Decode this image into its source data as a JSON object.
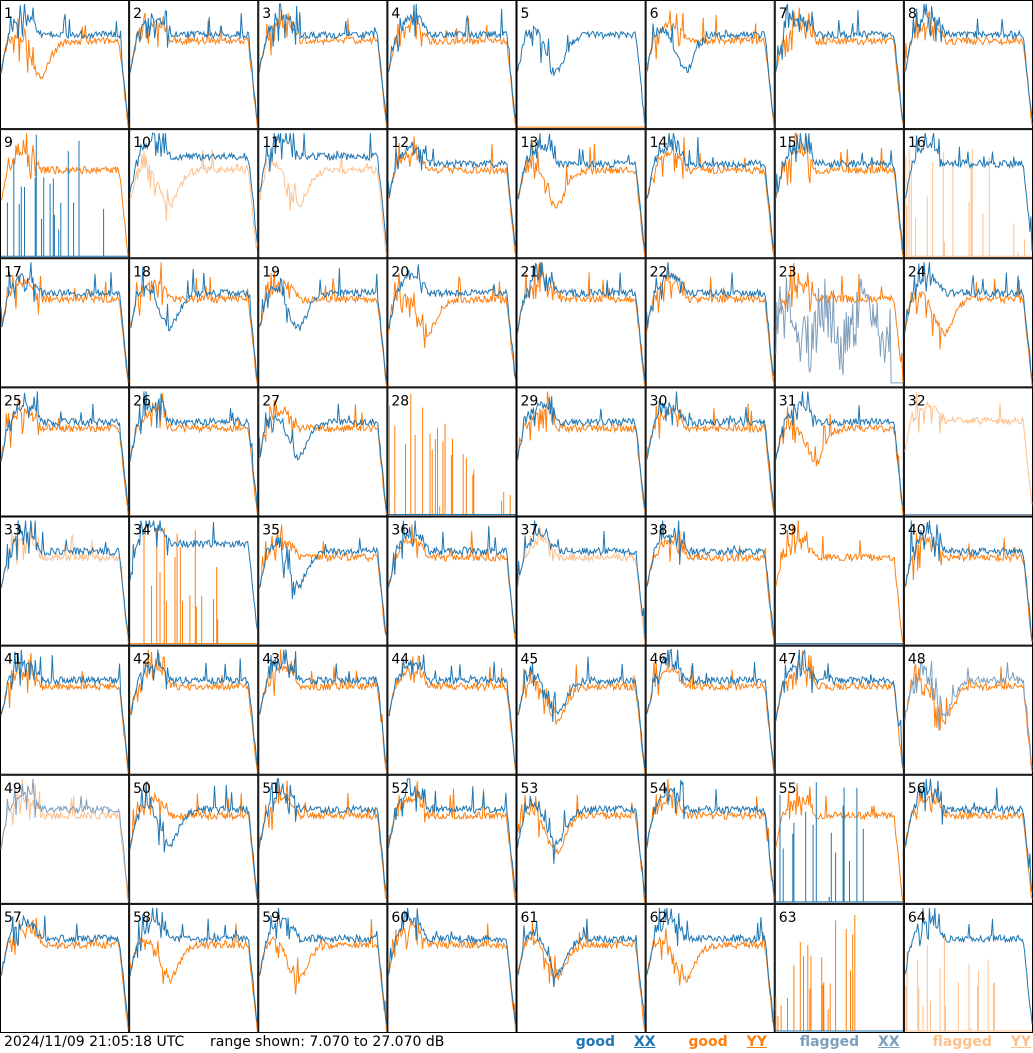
{
  "footer": {
    "timestamp": "2024/11/09 21:05:18 UTC",
    "range_text": "range shown: 7.070 to 27.070 dB"
  },
  "legend": [
    {
      "label": "good",
      "pol": "XX",
      "color": "#1f77b4"
    },
    {
      "label": "good",
      "pol": "YY",
      "color": "#ff7f0e"
    },
    {
      "label": "flagged",
      "pol": "XX",
      "color": "#7f9fbf"
    },
    {
      "label": "flagged",
      "pol": "YY",
      "color": "#ffc08c"
    }
  ],
  "chart_data": {
    "type": "line",
    "layout": "8x8 grid of small-multiple spectra, one per tile",
    "y_unit": "dB",
    "ylim": [
      7.07,
      27.07
    ],
    "grid": false,
    "series_styles": {
      "good_XX": "#1f77b4",
      "good_YY": "#ff7f0e",
      "flagged_XX": "#7f9fbf",
      "flagged_YY": "#ffc08c"
    },
    "tiles": [
      {
        "id": "1",
        "xx": "good",
        "yy": "good",
        "xx_shape": "normal",
        "yy_shape": "dip"
      },
      {
        "id": "2",
        "xx": "good",
        "yy": "good",
        "xx_shape": "normal",
        "yy_shape": "normal"
      },
      {
        "id": "3",
        "xx": "good",
        "yy": "good",
        "xx_shape": "normal",
        "yy_shape": "normal"
      },
      {
        "id": "4",
        "xx": "good",
        "yy": "good",
        "xx_shape": "normal",
        "yy_shape": "normal"
      },
      {
        "id": "5",
        "xx": "good",
        "yy": "good",
        "xx_shape": "dip",
        "yy_shape": "zero"
      },
      {
        "id": "6",
        "xx": "good",
        "yy": "good",
        "xx_shape": "dip",
        "yy_shape": "normal"
      },
      {
        "id": "7",
        "xx": "good",
        "yy": "good",
        "xx_shape": "normal",
        "yy_shape": "normal"
      },
      {
        "id": "8",
        "xx": "good",
        "yy": "good",
        "xx_shape": "normal",
        "yy_shape": "normal"
      },
      {
        "id": "9",
        "xx": "good",
        "yy": "good",
        "xx_shape": "spiky",
        "yy_shape": "normal"
      },
      {
        "id": "10",
        "xx": "good",
        "yy": "flagged",
        "xx_shape": "high",
        "yy_shape": "dip"
      },
      {
        "id": "11",
        "xx": "good",
        "yy": "flagged",
        "xx_shape": "high",
        "yy_shape": "dip"
      },
      {
        "id": "12",
        "xx": "good",
        "yy": "good",
        "xx_shape": "normal",
        "yy_shape": "normal"
      },
      {
        "id": "13",
        "xx": "good",
        "yy": "good",
        "xx_shape": "normal",
        "yy_shape": "dip"
      },
      {
        "id": "14",
        "xx": "good",
        "yy": "good",
        "xx_shape": "normal",
        "yy_shape": "normal"
      },
      {
        "id": "15",
        "xx": "good",
        "yy": "good",
        "xx_shape": "normal",
        "yy_shape": "normal"
      },
      {
        "id": "16",
        "xx": "good",
        "yy": "flagged",
        "xx_shape": "normal",
        "yy_shape": "spiky"
      },
      {
        "id": "17",
        "xx": "good",
        "yy": "good",
        "xx_shape": "normal",
        "yy_shape": "normal"
      },
      {
        "id": "18",
        "xx": "good",
        "yy": "good",
        "xx_shape": "dip",
        "yy_shape": "normal"
      },
      {
        "id": "19",
        "xx": "good",
        "yy": "good",
        "xx_shape": "dip",
        "yy_shape": "normal"
      },
      {
        "id": "20",
        "xx": "good",
        "yy": "good",
        "xx_shape": "normal",
        "yy_shape": "dip"
      },
      {
        "id": "21",
        "xx": "good",
        "yy": "good",
        "xx_shape": "normal",
        "yy_shape": "normal"
      },
      {
        "id": "22",
        "xx": "good",
        "yy": "good",
        "xx_shape": "normal",
        "yy_shape": "normal"
      },
      {
        "id": "23",
        "xx": "flagged",
        "yy": "good",
        "xx_shape": "noisy",
        "yy_shape": "normal"
      },
      {
        "id": "24",
        "xx": "good",
        "yy": "good",
        "xx_shape": "normal",
        "yy_shape": "dip"
      },
      {
        "id": "25",
        "xx": "good",
        "yy": "good",
        "xx_shape": "normal",
        "yy_shape": "normal"
      },
      {
        "id": "26",
        "xx": "good",
        "yy": "good",
        "xx_shape": "normal",
        "yy_shape": "normal"
      },
      {
        "id": "27",
        "xx": "good",
        "yy": "good",
        "xx_shape": "dip",
        "yy_shape": "normal"
      },
      {
        "id": "28",
        "xx": "good",
        "yy": "good",
        "xx_shape": "zero",
        "yy_shape": "spiky"
      },
      {
        "id": "29",
        "xx": "good",
        "yy": "good",
        "xx_shape": "normal",
        "yy_shape": "normal"
      },
      {
        "id": "30",
        "xx": "good",
        "yy": "good",
        "xx_shape": "normal",
        "yy_shape": "normal"
      },
      {
        "id": "31",
        "xx": "good",
        "yy": "good",
        "xx_shape": "normal",
        "yy_shape": "dip"
      },
      {
        "id": "32",
        "xx": "flagged",
        "yy": "flagged",
        "xx_shape": "zero",
        "yy_shape": "high"
      },
      {
        "id": "33",
        "xx": "good",
        "yy": "flagged",
        "xx_shape": "normal",
        "yy_shape": "normal"
      },
      {
        "id": "34",
        "xx": "good",
        "yy": "good",
        "xx_shape": "high",
        "yy_shape": "spiky"
      },
      {
        "id": "35",
        "xx": "good",
        "yy": "good",
        "xx_shape": "dip",
        "yy_shape": "normal"
      },
      {
        "id": "36",
        "xx": "good",
        "yy": "good",
        "xx_shape": "normal",
        "yy_shape": "normal"
      },
      {
        "id": "37",
        "xx": "good",
        "yy": "flagged",
        "xx_shape": "normal",
        "yy_shape": "normal"
      },
      {
        "id": "38",
        "xx": "good",
        "yy": "good",
        "xx_shape": "normal",
        "yy_shape": "normal"
      },
      {
        "id": "39",
        "xx": "good",
        "yy": "good",
        "xx_shape": "zero",
        "yy_shape": "normal"
      },
      {
        "id": "40",
        "xx": "good",
        "yy": "good",
        "xx_shape": "normal",
        "yy_shape": "normal"
      },
      {
        "id": "41",
        "xx": "good",
        "yy": "good",
        "xx_shape": "normal",
        "yy_shape": "normal"
      },
      {
        "id": "42",
        "xx": "good",
        "yy": "good",
        "xx_shape": "normal",
        "yy_shape": "normal"
      },
      {
        "id": "43",
        "xx": "good",
        "yy": "good",
        "xx_shape": "normal",
        "yy_shape": "normal"
      },
      {
        "id": "44",
        "xx": "good",
        "yy": "good",
        "xx_shape": "normal",
        "yy_shape": "normal"
      },
      {
        "id": "45",
        "xx": "good",
        "yy": "good",
        "xx_shape": "dip",
        "yy_shape": "dip"
      },
      {
        "id": "46",
        "xx": "good",
        "yy": "good",
        "xx_shape": "normal",
        "yy_shape": "normal"
      },
      {
        "id": "47",
        "xx": "good",
        "yy": "good",
        "xx_shape": "normal",
        "yy_shape": "normal"
      },
      {
        "id": "48",
        "xx": "flagged",
        "yy": "good",
        "xx_shape": "dip",
        "yy_shape": "dip"
      },
      {
        "id": "49",
        "xx": "flagged",
        "yy": "flagged",
        "xx_shape": "normal",
        "yy_shape": "normal"
      },
      {
        "id": "50",
        "xx": "good",
        "yy": "good",
        "xx_shape": "dip",
        "yy_shape": "normal"
      },
      {
        "id": "51",
        "xx": "good",
        "yy": "good",
        "xx_shape": "normal",
        "yy_shape": "normal"
      },
      {
        "id": "52",
        "xx": "good",
        "yy": "good",
        "xx_shape": "normal",
        "yy_shape": "normal"
      },
      {
        "id": "53",
        "xx": "good",
        "yy": "good",
        "xx_shape": "dip",
        "yy_shape": "dip"
      },
      {
        "id": "54",
        "xx": "good",
        "yy": "good",
        "xx_shape": "normal",
        "yy_shape": "normal"
      },
      {
        "id": "55",
        "xx": "good",
        "yy": "good",
        "xx_shape": "spiky",
        "yy_shape": "normal"
      },
      {
        "id": "56",
        "xx": "good",
        "yy": "good",
        "xx_shape": "normal",
        "yy_shape": "normal"
      },
      {
        "id": "57",
        "xx": "good",
        "yy": "good",
        "xx_shape": "normal",
        "yy_shape": "normal"
      },
      {
        "id": "58",
        "xx": "good",
        "yy": "good",
        "xx_shape": "normal",
        "yy_shape": "dip"
      },
      {
        "id": "59",
        "xx": "good",
        "yy": "good",
        "xx_shape": "normal",
        "yy_shape": "dip"
      },
      {
        "id": "60",
        "xx": "good",
        "yy": "good",
        "xx_shape": "normal",
        "yy_shape": "normal"
      },
      {
        "id": "61",
        "xx": "good",
        "yy": "good",
        "xx_shape": "dip",
        "yy_shape": "dip"
      },
      {
        "id": "62",
        "xx": "good",
        "yy": "good",
        "xx_shape": "normal",
        "yy_shape": "dip"
      },
      {
        "id": "63",
        "xx": "good",
        "yy": "good",
        "xx_shape": "zero",
        "yy_shape": "spiky"
      },
      {
        "id": "64",
        "xx": "good",
        "yy": "flagged",
        "xx_shape": "normal",
        "yy_shape": "spiky"
      }
    ]
  }
}
